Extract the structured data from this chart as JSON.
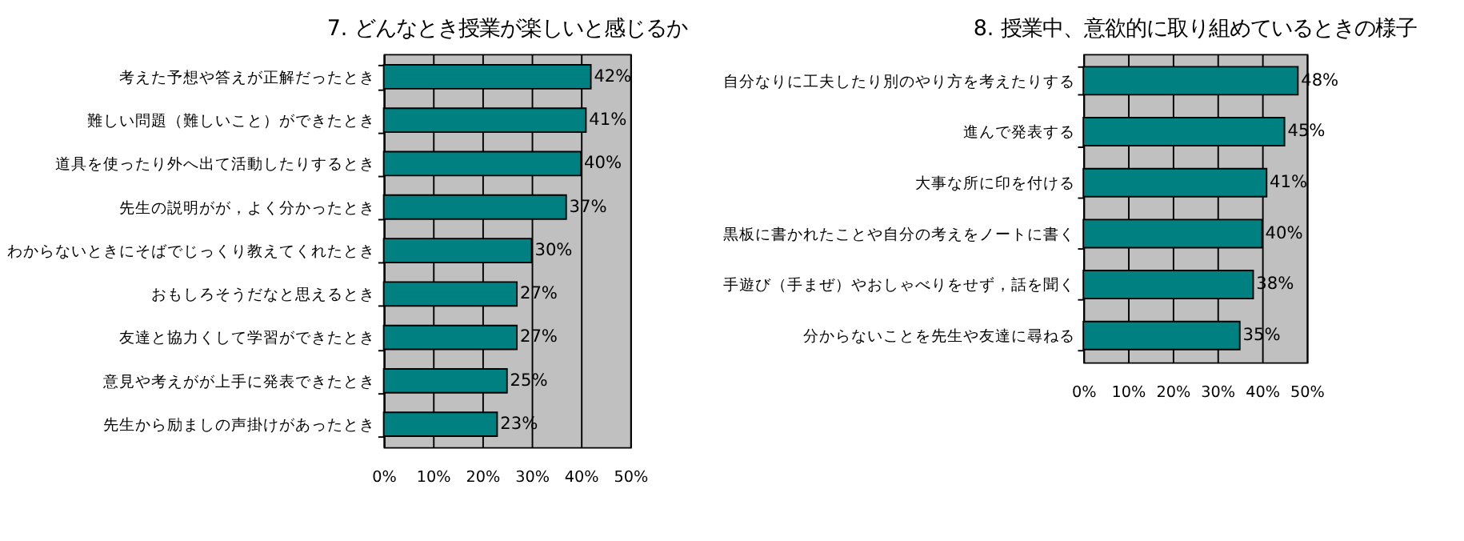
{
  "chart_data": [
    {
      "type": "bar",
      "orientation": "horizontal",
      "title": "7. どんなとき授業が楽しいと感じるか",
      "categories": [
        "考えた予想や答えが正解だったとき",
        "難しい問題（難しいこと）ができたとき",
        "道具を使ったり外へ出て活動したりするとき",
        "先生の説明がが，よく分かったとき",
        "わからないときにそばでじっくり教えてくれたとき",
        "おもしろそうだなと思えるとき",
        "友達と協力くして学習ができたとき",
        "意見や考えがが上手に発表できたとき",
        "先生から励ましの声掛けがあったとき"
      ],
      "values": [
        42,
        41,
        40,
        37,
        30,
        27,
        27,
        25,
        23
      ],
      "value_labels": [
        "42%",
        "41%",
        "40%",
        "37%",
        "30%",
        "27%",
        "27%",
        "25%",
        "23%"
      ],
      "color": "#008080",
      "xlim": [
        0,
        50
      ],
      "xticks": [
        {
          "value": 0,
          "label": "0%"
        },
        {
          "value": 10,
          "label": "10%"
        },
        {
          "value": 20,
          "label": "20%"
        },
        {
          "value": 30,
          "label": "30%"
        },
        {
          "value": 40,
          "label": "40%"
        },
        {
          "value": 50,
          "label": "50%"
        }
      ],
      "grid": "x"
    },
    {
      "type": "bar",
      "orientation": "horizontal",
      "title": "8. 授業中、意欲的に取り組めているときの様子",
      "categories": [
        "自分なりに工夫したり別のやり方を考えたりする",
        "進んで発表する",
        "大事な所に印を付ける",
        "黒板に書かれたことや自分の考えをノートに書く",
        "手遊び（手まぜ）やおしゃべりをせず，話を聞く",
        "分からないことを先生や友達に尋ねる"
      ],
      "values": [
        48,
        45,
        41,
        40,
        38,
        35
      ],
      "value_labels": [
        "48%",
        "45%",
        "41%",
        "40%",
        "38%",
        "35%"
      ],
      "color": "#008080",
      "xlim": [
        0,
        50
      ],
      "xticks": [
        {
          "value": 0,
          "label": "0%"
        },
        {
          "value": 10,
          "label": "10%"
        },
        {
          "value": 20,
          "label": "20%"
        },
        {
          "value": 30,
          "label": "30%"
        },
        {
          "value": 40,
          "label": "40%"
        },
        {
          "value": 50,
          "label": "50%"
        }
      ],
      "grid": "x"
    }
  ]
}
